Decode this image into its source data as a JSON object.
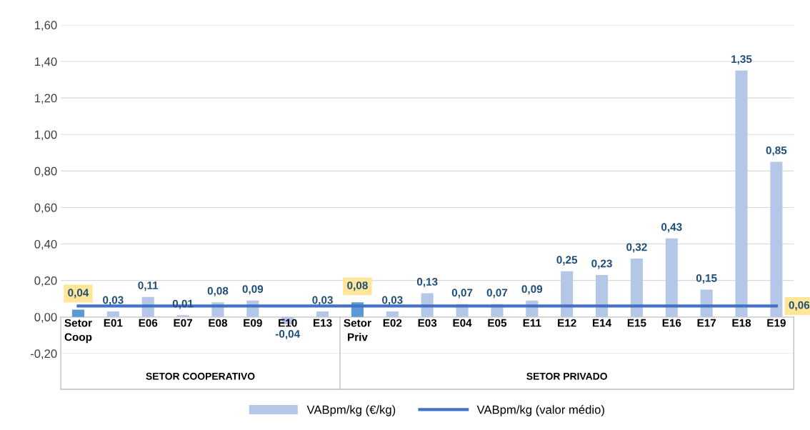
{
  "chart_data": {
    "type": "bar",
    "categories": [
      "Setor\nCoop",
      "E01",
      "E06",
      "E07",
      "E08",
      "E09",
      "E10",
      "E13",
      "Setor\nPriv",
      "E02",
      "E03",
      "E04",
      "E05",
      "E11",
      "E12",
      "E14",
      "E15",
      "E16",
      "E17",
      "E18",
      "E19"
    ],
    "series": [
      {
        "name": "VABpm/kg (€/kg)",
        "colors": [
          "#5b9bd5",
          "#b4c7e7",
          "#b4c7e7",
          "#b4c7e7",
          "#b4c7e7",
          "#b4c7e7",
          "#b4c7e7",
          "#b4c7e7",
          "#5b9bd5",
          "#b4c7e7",
          "#b4c7e7",
          "#b4c7e7",
          "#b4c7e7",
          "#b4c7e7",
          "#b4c7e7",
          "#b4c7e7",
          "#b4c7e7",
          "#b4c7e7",
          "#b4c7e7",
          "#b4c7e7",
          "#b4c7e7"
        ],
        "values": [
          0.04,
          0.03,
          0.11,
          0.01,
          0.08,
          0.09,
          -0.04,
          0.03,
          0.08,
          0.03,
          0.13,
          0.07,
          0.07,
          0.09,
          0.25,
          0.23,
          0.32,
          0.43,
          0.15,
          1.35,
          0.85
        ],
        "value_labels": [
          "0,04",
          "0,03",
          "0,11",
          "0,01",
          "0,08",
          "0,09",
          "-0,04",
          "0,03",
          "0,08",
          "0,03",
          "0,13",
          "0,07",
          "0,07",
          "0,09",
          "0,25",
          "0,23",
          "0,32",
          "0,43",
          "0,15",
          "1,35",
          "0,85"
        ]
      },
      {
        "name": "VABpm/kg (valor médio)",
        "type": "line",
        "color": "#4472c4",
        "values": [
          0.06,
          0.06,
          0.06,
          0.06,
          0.06,
          0.06,
          0.06,
          0.06,
          0.06,
          0.06,
          0.06,
          0.06,
          0.06,
          0.06,
          0.06,
          0.06,
          0.06,
          0.06,
          0.06,
          0.06,
          0.06
        ],
        "value_labels": [
          null,
          null,
          null,
          null,
          null,
          null,
          null,
          null,
          null,
          null,
          null,
          null,
          null,
          null,
          null,
          null,
          null,
          null,
          null,
          null,
          "0,06"
        ]
      }
    ],
    "annotations": [
      "SETOR COOPERATIVO",
      "SETOR PRIVADO"
    ],
    "ylim": [
      -0.2,
      1.6
    ],
    "yticks": [
      {
        "value": -0.2,
        "label": "-0,20"
      },
      {
        "value": 0,
        "label": "0,00"
      },
      {
        "value": 0.2,
        "label": "0,20"
      },
      {
        "value": 0.4,
        "label": "0,40"
      },
      {
        "value": 0.6,
        "label": "0,60"
      },
      {
        "value": 0.8,
        "label": "0,80"
      },
      {
        "value": 1.0,
        "label": "1,00"
      },
      {
        "value": 1.2,
        "label": "1,20"
      },
      {
        "value": 1.4,
        "label": "1,40"
      },
      {
        "value": 1.6,
        "label": "1,60"
      }
    ],
    "grid": "y",
    "legend": "bottom"
  }
}
